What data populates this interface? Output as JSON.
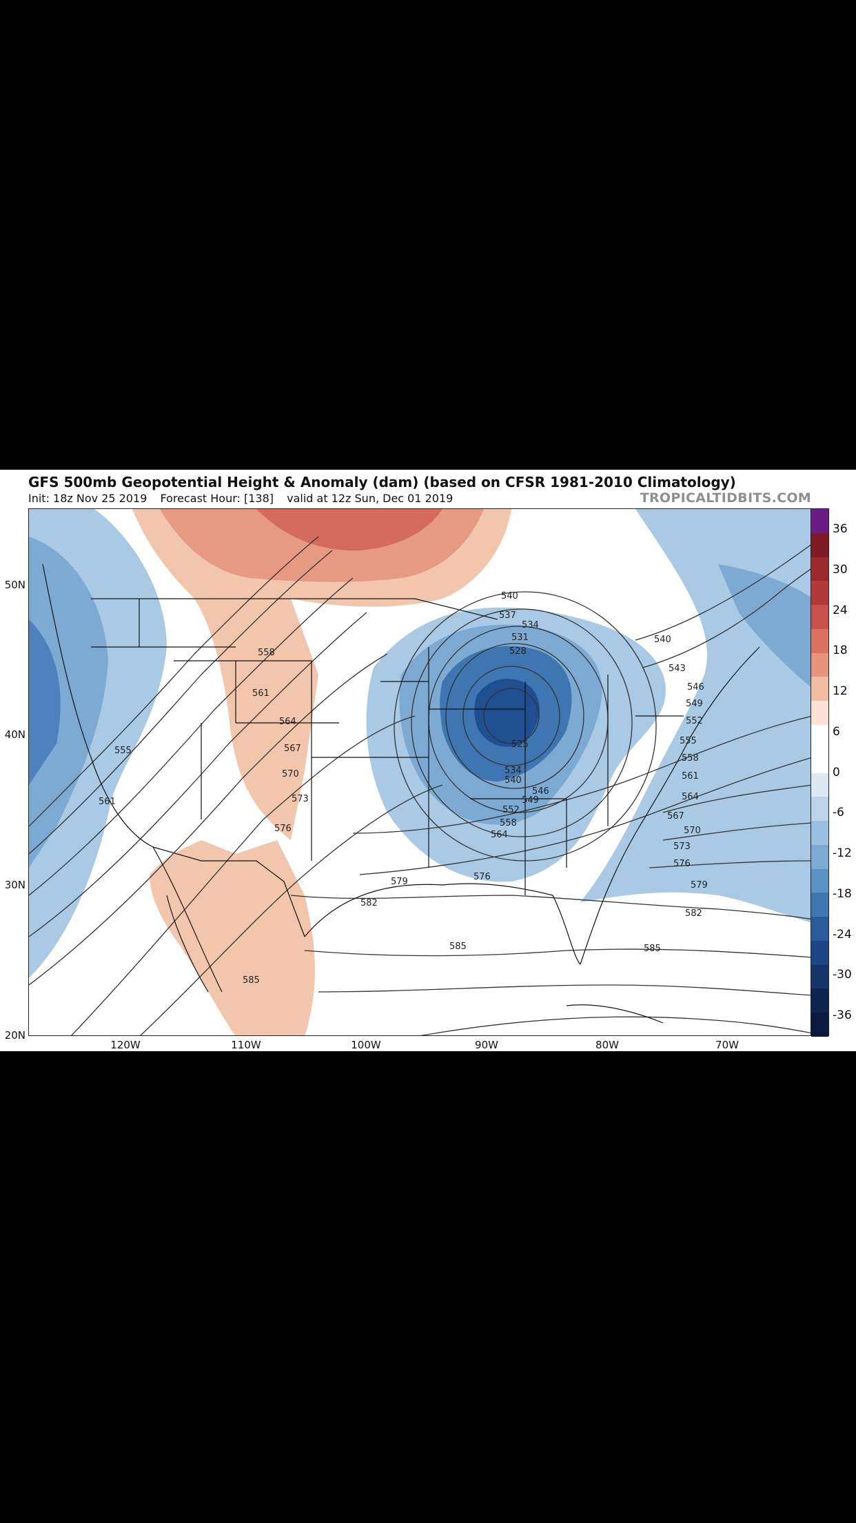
{
  "header": {
    "title": "GFS 500mb Geopotential Height & Anomaly (dam) (based on CFSR 1981-2010 Climatology)",
    "init": "Init: 18z Nov 25 2019",
    "forecast_hour": "Forecast Hour: [138]",
    "valid": "valid at 12z Sun, Dec 01 2019",
    "brand": "TROPICALTIDBITS.COM"
  },
  "map": {
    "lat_labels": [
      "50N",
      "40N",
      "30N",
      "20N"
    ],
    "lon_labels": [
      "120W",
      "110W",
      "100W",
      "90W",
      "80W",
      "70W"
    ],
    "contour_labels": [
      "534",
      "537",
      "540",
      "531",
      "528",
      "525",
      "534",
      "540",
      "546",
      "549",
      "552",
      "558",
      "564",
      "540",
      "543",
      "546",
      "549",
      "552",
      "555",
      "558",
      "561",
      "564",
      "567",
      "570",
      "573",
      "576",
      "579",
      "582",
      "585",
      "585",
      "558",
      "561",
      "564",
      "567",
      "570",
      "573",
      "576",
      "579",
      "582",
      "576",
      "555",
      "561",
      "585"
    ],
    "colors": {
      "deep_blue": "#1f4e91",
      "mid_blue": "#5b8fc7",
      "light_blue": "#a9c9e4",
      "light_peach": "#f2c5ad",
      "mid_red": "#dd7c67",
      "dark_red": "#c4463f"
    }
  },
  "colorbar": {
    "labels": [
      "36",
      "30",
      "24",
      "18",
      "12",
      "6",
      "0",
      "-6",
      "-12",
      "-18",
      "-24",
      "-30",
      "-36"
    ],
    "colors": [
      "#6a1b85",
      "#7e1a23",
      "#9a2a2e",
      "#b2393a",
      "#c8524b",
      "#d9725f",
      "#e8957e",
      "#f3bba2",
      "#fbe2d4",
      "#ffffff",
      "#ffffff",
      "#dce8f3",
      "#bcd4ea",
      "#9cc0df",
      "#7caad3",
      "#5c91c4",
      "#3f76b1",
      "#2a5c9b",
      "#1d4784",
      "#15356b",
      "#0f2653",
      "#0a1a3f"
    ]
  }
}
